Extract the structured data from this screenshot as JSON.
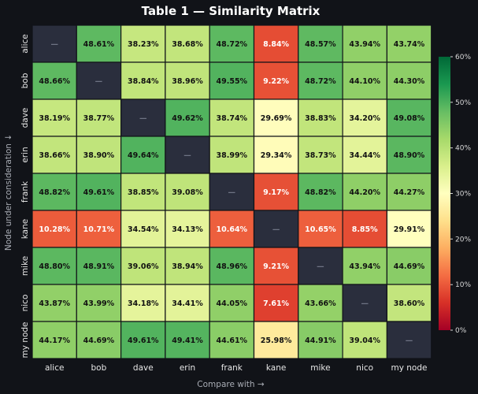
{
  "chart_data": {
    "type": "heatmap",
    "title": "Table 1 — Similarity Matrix",
    "xlabel": "Compare with →",
    "ylabel": "Node under consideration ↓",
    "rows": [
      "alice",
      "bob",
      "dave",
      "erin",
      "frank",
      "kane",
      "mike",
      "nico",
      "my node"
    ],
    "columns": [
      "alice",
      "bob",
      "dave",
      "erin",
      "frank",
      "kane",
      "mike",
      "nico",
      "my node"
    ],
    "diagonal_label": "—",
    "values": [
      [
        null,
        48.61,
        38.23,
        38.68,
        48.72,
        8.84,
        48.57,
        43.94,
        43.74
      ],
      [
        48.66,
        null,
        38.84,
        38.96,
        49.55,
        9.22,
        48.72,
        44.1,
        44.3
      ],
      [
        38.19,
        38.77,
        null,
        49.62,
        38.74,
        29.69,
        38.83,
        34.2,
        49.08
      ],
      [
        38.66,
        38.9,
        49.64,
        null,
        38.99,
        29.34,
        38.73,
        34.44,
        48.9
      ],
      [
        48.82,
        49.61,
        38.85,
        39.08,
        null,
        9.17,
        48.82,
        44.2,
        44.27
      ],
      [
        10.28,
        10.71,
        34.54,
        34.13,
        10.64,
        null,
        10.65,
        8.85,
        29.91
      ],
      [
        48.8,
        48.91,
        39.06,
        38.94,
        48.96,
        9.21,
        null,
        43.94,
        44.69
      ],
      [
        43.87,
        43.99,
        34.18,
        34.41,
        44.05,
        7.61,
        43.66,
        null,
        38.6
      ],
      [
        44.17,
        44.69,
        49.61,
        49.41,
        44.61,
        25.98,
        44.91,
        39.04,
        null
      ]
    ],
    "value_suffix": "%",
    "colorbar": {
      "range": [
        0,
        60
      ],
      "ticks": [
        "0%",
        "10%",
        "20%",
        "30%",
        "40%",
        "50%",
        "60%"
      ],
      "colormap": "RdYlGn"
    },
    "colors": {
      "background": "#111318",
      "diagonal": "#2a2e3d",
      "cell_border": "#111318"
    }
  }
}
